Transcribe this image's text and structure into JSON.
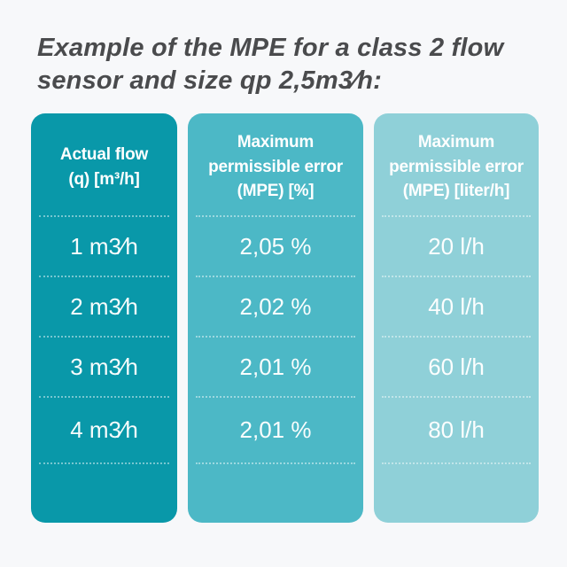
{
  "title": "Example of the MPE for a class 2 flow\nsensor and size qp 2,5m3⁄h:",
  "colors": {
    "page_background": "#f7f8fa",
    "column_actual_flow": "#0998a9",
    "column_mpe_percent": "#4cb8c6",
    "column_mpe_liter": "#8fd0d8",
    "title_text": "#4a4b4d",
    "cell_text": "#ffffff"
  },
  "table": {
    "columns": [
      {
        "id": "actual-flow",
        "header": "Actual flow\n(q) [m³/h]",
        "color": "#0998a9",
        "rows": [
          "1 m3⁄h",
          "2 m3⁄h",
          "3 m3⁄h",
          "4 m3⁄h"
        ]
      },
      {
        "id": "mpe-percent",
        "header": "Maximum\npermissible error\n(MPE) [%]",
        "color": "#4cb8c6",
        "rows": [
          "2,05 %",
          "2,02 %",
          "2,01 %",
          "2,01 %"
        ]
      },
      {
        "id": "mpe-liter",
        "header": "Maximum\npermissible error\n(MPE) [liter/h]",
        "color": "#8fd0d8",
        "rows": [
          "20 l/h",
          "40 l/h",
          "60 l/h",
          "80 l/h"
        ]
      }
    ]
  },
  "chart_data": {
    "type": "table",
    "title": "Example of the MPE for a class 2 flow sensor and size qp 2,5m3/h:",
    "columns": [
      "Actual flow (q) [m³/h]",
      "Maximum permissible error (MPE) [%]",
      "Maximum permissible error (MPE) [liter/h]"
    ],
    "rows": [
      [
        "1 m3/h",
        "2,05 %",
        "20 l/h"
      ],
      [
        "2 m3/h",
        "2,02 %",
        "40 l/h"
      ],
      [
        "3 m3/h",
        "2,01 %",
        "60 l/h"
      ],
      [
        "4 m3/h",
        "2,01 %",
        "80 l/h"
      ]
    ]
  }
}
